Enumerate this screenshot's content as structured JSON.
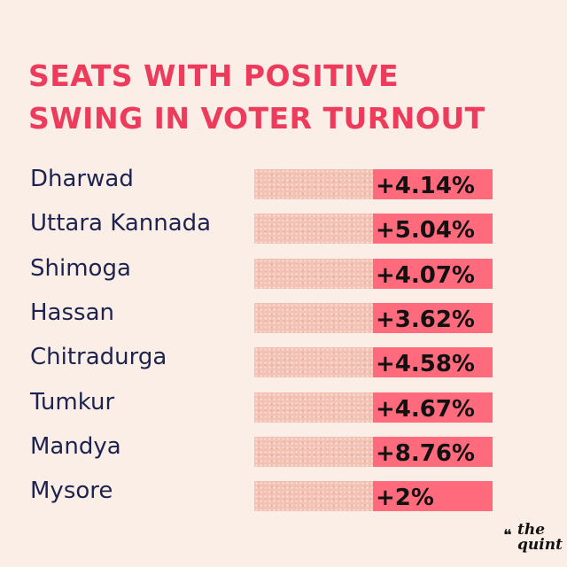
{
  "title_lines": [
    "SEATS WITH POSITIVE",
    "SWING IN VOTER TURNOUT"
  ],
  "brand": {
    "line1": "the",
    "line2": "quint"
  },
  "colors": {
    "title": "#ee3b5b",
    "label": "#1d2350",
    "highlight": "#ff6b7c",
    "track": "#f3c2b4",
    "background": "#fbeee6"
  },
  "chart_data": {
    "type": "bar",
    "title": "SEATS WITH POSITIVE SWING IN VOTER TURNOUT",
    "categories": [
      "Dharwad",
      "Uttara Kannada",
      "Shimoga",
      "Hassan",
      "Chitradurga",
      "Tumkur",
      "Mandya",
      "Mysore"
    ],
    "values": [
      4.14,
      5.04,
      4.07,
      3.62,
      4.58,
      4.67,
      8.76,
      2
    ],
    "data_labels": [
      "+4.14%",
      "+5.04%",
      "+4.07%",
      "+3.62%",
      "+4.58%",
      "+4.67%",
      "+8.76%",
      "+2%"
    ],
    "xlabel": "",
    "ylabel": ""
  }
}
